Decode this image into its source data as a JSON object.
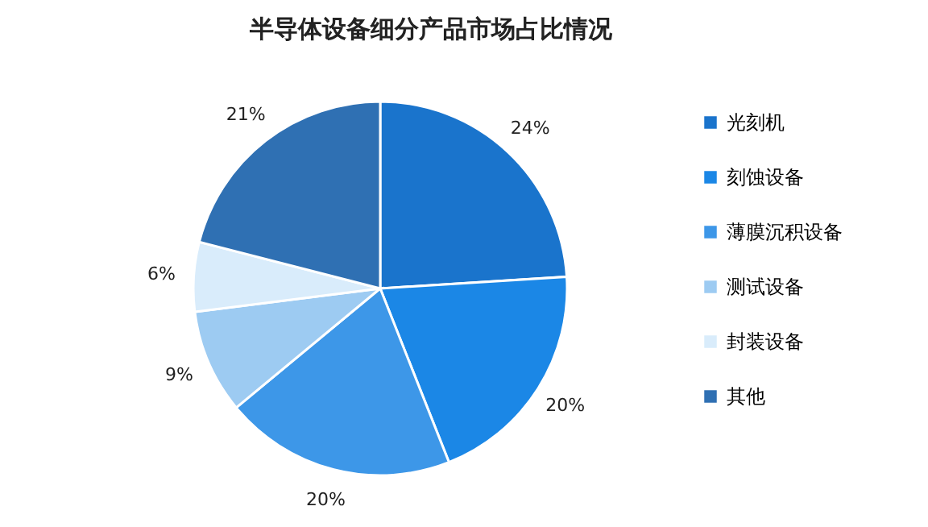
{
  "chart_data": {
    "type": "pie",
    "title": "半导体设备细分产品市场占比情况",
    "categories": [
      "光刻机",
      "刻蚀设备",
      "薄膜沉积设备",
      "测试设备",
      "封装设备",
      "其他"
    ],
    "values": [
      24,
      20,
      20,
      9,
      6,
      21
    ],
    "value_labels": [
      "24%",
      "20%",
      "20%",
      "9%",
      "6%",
      "21%"
    ],
    "colors": [
      "#1a74cc",
      "#1b87e6",
      "#3d97e8",
      "#9dcbf2",
      "#d9ecfb",
      "#2f70b3"
    ],
    "legend": "right"
  }
}
